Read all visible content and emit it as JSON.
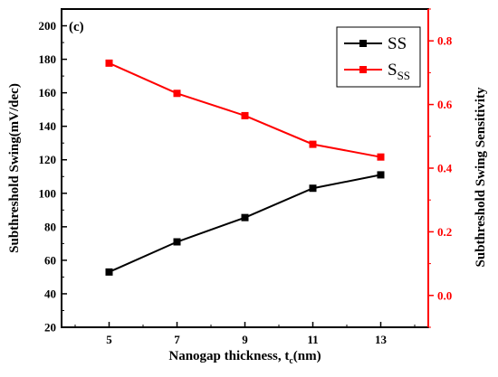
{
  "chart_data": {
    "type": "line",
    "panel_label": "(c)",
    "x": [
      5,
      7,
      9,
      11,
      13
    ],
    "xlabel": {
      "main": "Nanogap thickness, t",
      "sub": "c",
      "tail": "(nm)"
    },
    "xlim": [
      3.6,
      14.4
    ],
    "xticks": [
      5,
      7,
      9,
      11,
      13
    ],
    "ylabel_left": "Subthreshold Swing(mV/dec)",
    "ylim_left": [
      20,
      210
    ],
    "yticks_left": [
      20,
      40,
      60,
      80,
      100,
      120,
      140,
      160,
      180,
      200
    ],
    "ylabel_right": "Subthreshold Swing Sensitivity",
    "ylim_right": [
      -0.1,
      0.9
    ],
    "yticks_right": [
      "0.0",
      "0.2",
      "0.4",
      "0.6",
      "0.8"
    ],
    "series": [
      {
        "name": "SS",
        "name_sub": "",
        "axis": "left",
        "color": "#000000",
        "marker": "square",
        "values": [
          53,
          71,
          85.5,
          103,
          111
        ]
      },
      {
        "name": "S",
        "name_sub": "SS",
        "axis": "right",
        "color": "#ff0000",
        "marker": "square",
        "values": [
          0.73,
          0.635,
          0.565,
          0.475,
          0.435
        ]
      }
    ],
    "legend_position": "top-right",
    "grid": false
  }
}
